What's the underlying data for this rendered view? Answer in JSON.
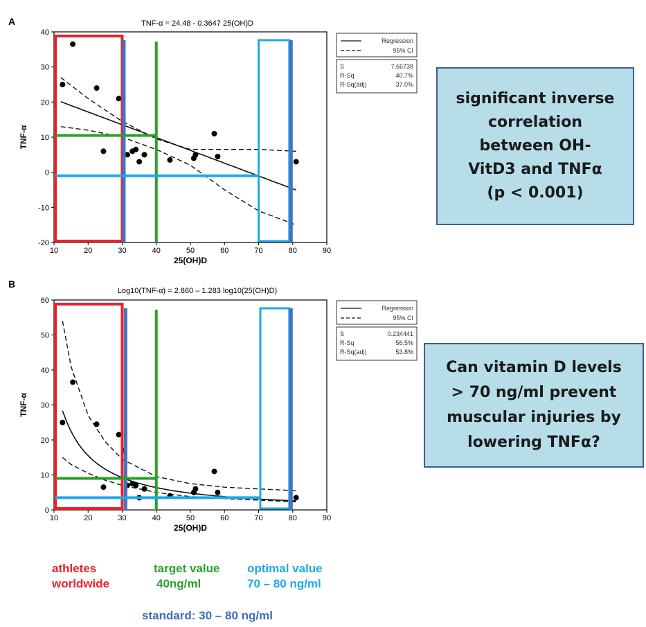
{
  "colors": {
    "red": "#e8222b",
    "blue": "#4472c4",
    "green": "#2aa02a",
    "cyan": "#1fa9e6",
    "callout_bg": "#b7dde8",
    "callout_border": "#3b5f8f"
  },
  "chart_data": [
    {
      "panel": "A",
      "type": "scatter",
      "title": "TNF-α = 24.48 - 0.3647 25(OH)D",
      "xlabel": "25(OH)D",
      "ylabel": "TNF-α",
      "xlim": [
        10,
        90
      ],
      "ylim": [
        -20,
        40
      ],
      "xticks": [
        10,
        20,
        30,
        40,
        50,
        60,
        70,
        80,
        90
      ],
      "yticks": [
        -20,
        -10,
        0,
        10,
        20,
        30,
        40
      ],
      "points": [
        [
          12.5,
          25
        ],
        [
          15.5,
          36.5
        ],
        [
          22.5,
          24
        ],
        [
          24.5,
          6
        ],
        [
          29,
          21
        ],
        [
          31.5,
          5
        ],
        [
          33,
          6
        ],
        [
          34,
          6.5
        ],
        [
          35,
          3
        ],
        [
          36.5,
          5
        ],
        [
          44,
          3.5
        ],
        [
          51,
          4
        ],
        [
          51.5,
          5
        ],
        [
          57,
          11
        ],
        [
          58,
          4.5
        ],
        [
          81,
          3
        ]
      ],
      "fit": {
        "type": "linear",
        "intercept": 24.48,
        "slope": -0.3647,
        "x_range": [
          12,
          81
        ]
      },
      "ci_upper": [
        [
          12,
          27
        ],
        [
          20,
          21
        ],
        [
          30,
          14.5
        ],
        [
          40,
          9.5
        ],
        [
          50,
          6.5
        ],
        [
          60,
          6.5
        ],
        [
          70,
          6.5
        ],
        [
          81,
          6
        ]
      ],
      "ci_lower": [
        [
          12,
          13
        ],
        [
          20,
          12
        ],
        [
          30,
          10
        ],
        [
          40,
          6.5
        ],
        [
          50,
          2
        ],
        [
          60,
          -5
        ],
        [
          70,
          -11
        ],
        [
          81,
          -15
        ]
      ],
      "legend": {
        "regression": "Regression",
        "ci": "95% CI"
      },
      "stats": [
        {
          "label": "S",
          "value": "7.66738"
        },
        {
          "label": "R-Sq",
          "value": "40.7%"
        },
        {
          "label": "R-Sq(adj)",
          "value": "37.0%"
        }
      ],
      "overlays": {
        "red_box_x": [
          10,
          30
        ],
        "blue_line_x": 30.5,
        "green_vline_x": 40,
        "cyan_box_x": [
          70,
          79
        ],
        "blue_line2_x": 79.5,
        "green_hline_y": 10.5,
        "cyan_hline_y": -1
      }
    },
    {
      "panel": "B",
      "type": "scatter",
      "title": "Log10(TNF-α) = 2.860 – 1.283 log10(25(OH)D)",
      "xlabel": "25(OH)D",
      "ylabel": "TNF-α",
      "xlim": [
        10,
        90
      ],
      "ylim": [
        0,
        60
      ],
      "xticks": [
        10,
        20,
        30,
        40,
        50,
        60,
        70,
        80,
        90
      ],
      "yticks": [
        0,
        10,
        20,
        30,
        40,
        50,
        60
      ],
      "points": [
        [
          12.5,
          25
        ],
        [
          15.5,
          36.5
        ],
        [
          22.5,
          24.5
        ],
        [
          24.5,
          6.5
        ],
        [
          29,
          21.5
        ],
        [
          30.5,
          17
        ],
        [
          31.5,
          7
        ],
        [
          33,
          7.5
        ],
        [
          34,
          7
        ],
        [
          35,
          3.5
        ],
        [
          36.5,
          6
        ],
        [
          44,
          4
        ],
        [
          51,
          5
        ],
        [
          51.5,
          6
        ],
        [
          57,
          11
        ],
        [
          58,
          5
        ],
        [
          81,
          3.5
        ]
      ],
      "fit": {
        "type": "power",
        "log_intercept": 2.86,
        "log_slope": -1.283,
        "x_range": [
          12.5,
          81
        ]
      },
      "ci_upper": [
        [
          12.5,
          54
        ],
        [
          15,
          41
        ],
        [
          20,
          27
        ],
        [
          25,
          19.5
        ],
        [
          30,
          14.5
        ],
        [
          40,
          9.5
        ],
        [
          50,
          7.5
        ],
        [
          60,
          6.5
        ],
        [
          70,
          6
        ],
        [
          81,
          5.5
        ]
      ],
      "ci_lower": [
        [
          12.5,
          15
        ],
        [
          15,
          13
        ],
        [
          20,
          10.5
        ],
        [
          25,
          8.5
        ],
        [
          30,
          7
        ],
        [
          40,
          5
        ],
        [
          50,
          3.8
        ],
        [
          60,
          3.2
        ],
        [
          70,
          2.8
        ],
        [
          81,
          2.3
        ]
      ],
      "legend": {
        "regression": "Regression",
        "ci": "95% CI"
      },
      "stats": [
        {
          "label": "S",
          "value": "0.234441"
        },
        {
          "label": "R-Sq",
          "value": "56.5%"
        },
        {
          "label": "R-Sq(adj)",
          "value": "53.8%"
        }
      ],
      "overlays": {
        "red_box_x": [
          10,
          30
        ],
        "blue_line_x": 31,
        "green_vline_x": 40,
        "cyan_box_x": [
          70.5,
          79
        ],
        "blue_line2_x": 79.5,
        "green_hline_y": 9,
        "cyan_hline_y": 3.5
      }
    }
  ],
  "callouts": {
    "a": [
      "significant inverse",
      "correlation",
      "between OH-",
      "VitD3 and TNFα",
      "(p < 0.001)"
    ],
    "b": [
      "Can vitamin D levels",
      "> 70 ng/ml prevent",
      "muscular injuries by",
      "lowering TNFα?"
    ]
  },
  "legend_text": {
    "athletes": [
      "athletes",
      "worldwide"
    ],
    "target": [
      "target value",
      "40ng/ml"
    ],
    "optimal": [
      "optimal value",
      "70 – 80 ng/ml"
    ],
    "standard": "standard: 30 – 80 ng/ml"
  }
}
